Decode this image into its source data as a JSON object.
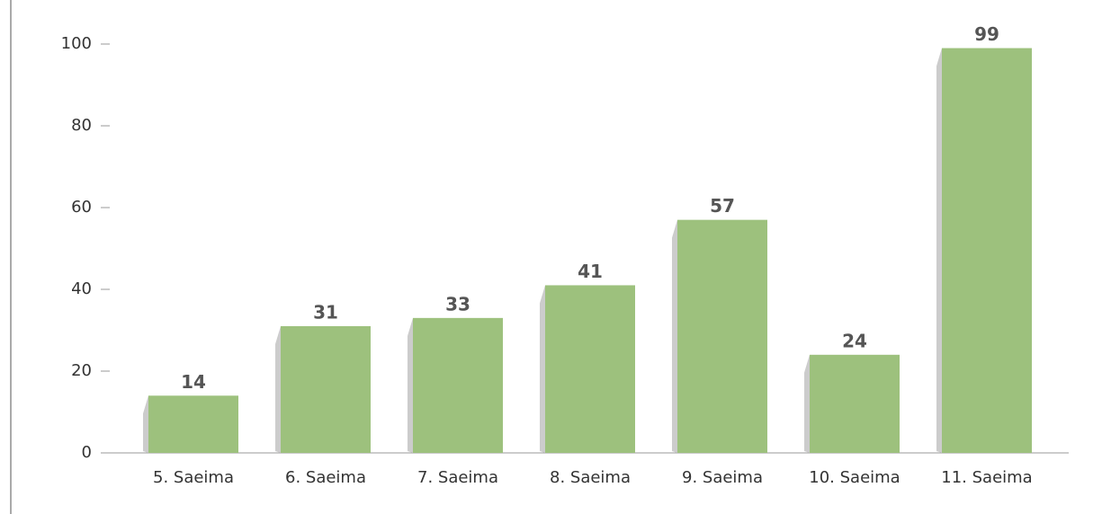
{
  "chart_data": {
    "type": "bar",
    "categories": [
      "5. Saeima",
      "6. Saeima",
      "7. Saeima",
      "8. Saeima",
      "9. Saeima",
      "10. Saeima",
      "11. Saeima"
    ],
    "values": [
      14,
      31,
      33,
      41,
      57,
      24,
      99
    ],
    "color": "#9dc17d",
    "ylim": [
      0,
      100
    ],
    "yticks": [
      0,
      20,
      40,
      60,
      80,
      100
    ],
    "grid": true
  }
}
